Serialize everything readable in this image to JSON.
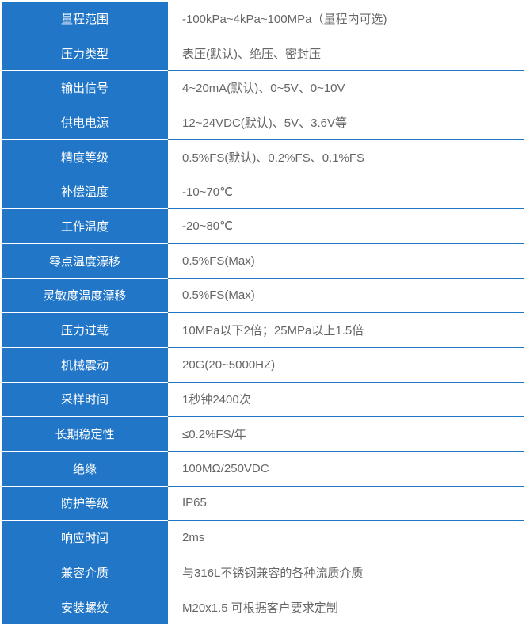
{
  "table": {
    "type": "table",
    "label_col_width": 210,
    "value_col_width": 450,
    "row_height": 43.7,
    "label_bg_color": "#2176c7",
    "label_text_color": "#ffffff",
    "value_bg_color": "#ffffff",
    "value_text_color": "#666666",
    "border_color": "#2176c7",
    "label_divider_color": "#ffffff",
    "label_fontsize": 15,
    "value_fontsize": 15,
    "rows": [
      {
        "label": "量程范围",
        "value": "-100kPa~4kPa~100MPa（量程内可选)"
      },
      {
        "label": "压力类型",
        "value": "表压(默认)、绝压、密封压"
      },
      {
        "label": "输出信号",
        "value": "4~20mA(默认)、0~5V、0~10V"
      },
      {
        "label": "供电电源",
        "value": "12~24VDC(默认)、5V、3.6V等"
      },
      {
        "label": "精度等级",
        "value": "0.5%FS(默认)、0.2%FS、0.1%FS"
      },
      {
        "label": "补偿温度",
        "value": "-10~70℃"
      },
      {
        "label": "工作温度",
        "value": "-20~80℃"
      },
      {
        "label": "零点温度漂移",
        "value": "0.5%FS(Max)"
      },
      {
        "label": "灵敏度温度漂移",
        "value": "0.5%FS(Max)"
      },
      {
        "label": "压力过载",
        "value": "10MPa以下2倍；25MPa以上1.5倍"
      },
      {
        "label": "机械震动",
        "value": "20G(20~5000HZ)"
      },
      {
        "label": "采样时间",
        "value": "1秒钟2400次"
      },
      {
        "label": "长期稳定性",
        "value": "≤0.2%FS/年"
      },
      {
        "label": "绝缘",
        "value": "100MΩ/250VDC"
      },
      {
        "label": "防护等级",
        "value": "IP65"
      },
      {
        "label": "响应时间",
        "value": "2ms"
      },
      {
        "label": "兼容介质",
        "value": "与316L不锈钢兼容的各种流质介质"
      },
      {
        "label": "安装螺纹",
        "value": "M20x1.5  可根据客户要求定制"
      }
    ]
  }
}
